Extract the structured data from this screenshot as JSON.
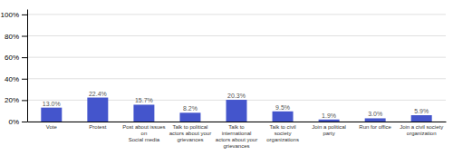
{
  "chart_data": {
    "type": "bar",
    "categories": [
      "Vote",
      "Protest",
      "Post about issues on\nSocial media",
      "Talk to political\nactors about your\ngrievances",
      "Talk to international\nactors about your\ngrievances",
      "Talk to civil society\norganizations",
      "Join a political party",
      "Run for office",
      "Join a civil society\norganization"
    ],
    "values": [
      13.0,
      22.4,
      15.7,
      8.2,
      20.3,
      9.5,
      1.9,
      3.0,
      5.9
    ],
    "value_labels": [
      "13.0%",
      "22.4%",
      "15.7%",
      "8.2%",
      "20.3%",
      "9.5%",
      "1.9%",
      "3.0%",
      "5.9%"
    ],
    "color": "#4455cc",
    "ylim": [
      0,
      105
    ],
    "yticks": [
      {
        "value": 0,
        "label": "0%"
      },
      {
        "value": 20,
        "label": "20%"
      },
      {
        "value": 40,
        "label": "40%"
      },
      {
        "value": 60,
        "label": "60%"
      },
      {
        "value": 80,
        "label": "80%"
      },
      {
        "value": 100,
        "label": "100%"
      }
    ],
    "grid": true,
    "data_labels": true
  }
}
